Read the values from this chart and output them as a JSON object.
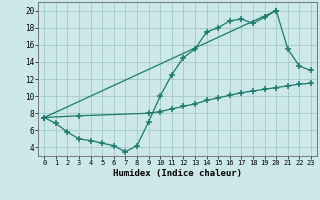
{
  "xlabel": "Humidex (Indice chaleur)",
  "bg_color": "#cce8e8",
  "grid_color": "#aacccc",
  "line_color": "#1a7a6e",
  "xlim": [
    -0.5,
    23.5
  ],
  "ylim": [
    3.0,
    21.0
  ],
  "xticks": [
    0,
    1,
    2,
    3,
    4,
    5,
    6,
    7,
    8,
    9,
    10,
    11,
    12,
    13,
    14,
    15,
    16,
    17,
    18,
    19,
    20,
    21,
    22,
    23
  ],
  "yticks": [
    4,
    6,
    8,
    10,
    12,
    14,
    16,
    18,
    20
  ],
  "line1_x": [
    0,
    1,
    2,
    3,
    4,
    5,
    6,
    7,
    8,
    9,
    10,
    11,
    12,
    13,
    14,
    15,
    16,
    17,
    18,
    19,
    20
  ],
  "line1_y": [
    7.5,
    6.8,
    5.8,
    5.0,
    4.8,
    4.5,
    4.2,
    3.5,
    4.2,
    7.0,
    10.0,
    12.5,
    14.5,
    15.5,
    17.5,
    18.0,
    18.8,
    19.0,
    18.5,
    19.2,
    20.0
  ],
  "line2_x": [
    0,
    3,
    9,
    10,
    11,
    12,
    13,
    14,
    15,
    16,
    17,
    18,
    19,
    20,
    21,
    22,
    23
  ],
  "line2_y": [
    7.5,
    7.7,
    8.0,
    8.2,
    8.5,
    8.8,
    9.1,
    9.5,
    9.8,
    10.1,
    10.4,
    10.6,
    10.8,
    11.0,
    11.2,
    11.4,
    11.5
  ],
  "line3_x": [
    0,
    20,
    21,
    22,
    23
  ],
  "line3_y": [
    7.5,
    20.0,
    15.5,
    13.5,
    13.0
  ]
}
